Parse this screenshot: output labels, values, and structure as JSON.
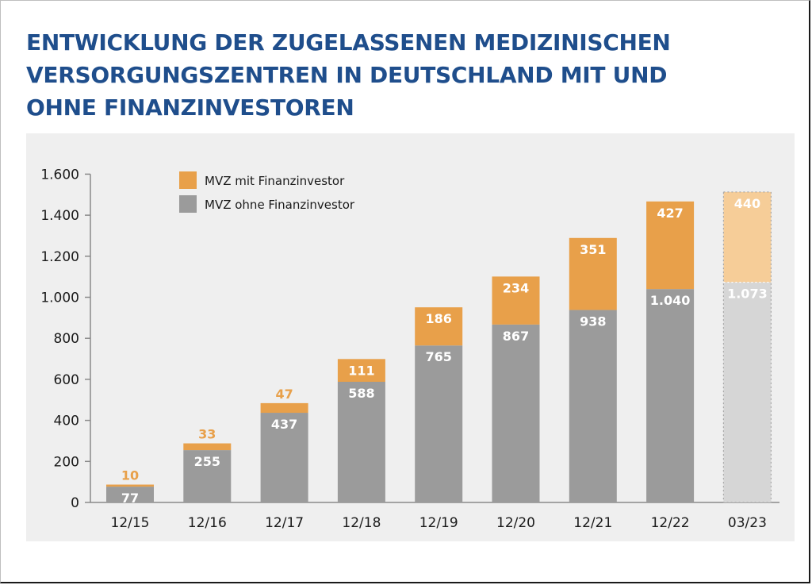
{
  "title_lines": [
    "ENTWICKLUNG DER ZUGELASSENEN MEDIZINISCHEN",
    "VERSORGUNGSZENTREN IN DEUTSCHLAND MIT UND",
    "OHNE FINANZINVESTOREN"
  ],
  "colors": {
    "title": "#1f4e8c",
    "with_investor": "#e8a04a",
    "without_investor": "#9b9b9b",
    "with_investor_projected": "#f6cd98",
    "without_investor_projected": "#d6d6d6",
    "panel": "#efefef"
  },
  "chart_data": {
    "type": "bar",
    "stacked": true,
    "categories": [
      "12/15",
      "12/16",
      "12/17",
      "12/18",
      "12/19",
      "12/20",
      "12/21",
      "12/22",
      "03/23"
    ],
    "series": [
      {
        "name": "MVZ ohne Finanzinvestor",
        "values": [
          77,
          255,
          437,
          588,
          765,
          867,
          938,
          1040,
          1073
        ],
        "labels": [
          "77",
          "255",
          "437",
          "588",
          "765",
          "867",
          "938",
          "1.040",
          "1.073"
        ]
      },
      {
        "name": "MVZ mit Finanzinvestor",
        "values": [
          10,
          33,
          47,
          111,
          186,
          234,
          351,
          427,
          440
        ],
        "labels": [
          "10",
          "33",
          "47",
          "111",
          "186",
          "234",
          "351",
          "427",
          "440"
        ]
      }
    ],
    "legend": [
      "MVZ mit Finanzinvestor",
      "MVZ ohne Finanzinvestor"
    ],
    "legend_position": "top-left",
    "highlighted_category": "03/23",
    "y_ticks": [
      0,
      200,
      400,
      600,
      800,
      1000,
      1200,
      1400,
      1600
    ],
    "y_tick_labels": [
      "0",
      "200",
      "400",
      "600",
      "800",
      "1.000",
      "1.200",
      "1.400",
      "1.600"
    ],
    "ylim": [
      0,
      1600
    ],
    "grid": false,
    "xlabel": "",
    "ylabel": ""
  }
}
